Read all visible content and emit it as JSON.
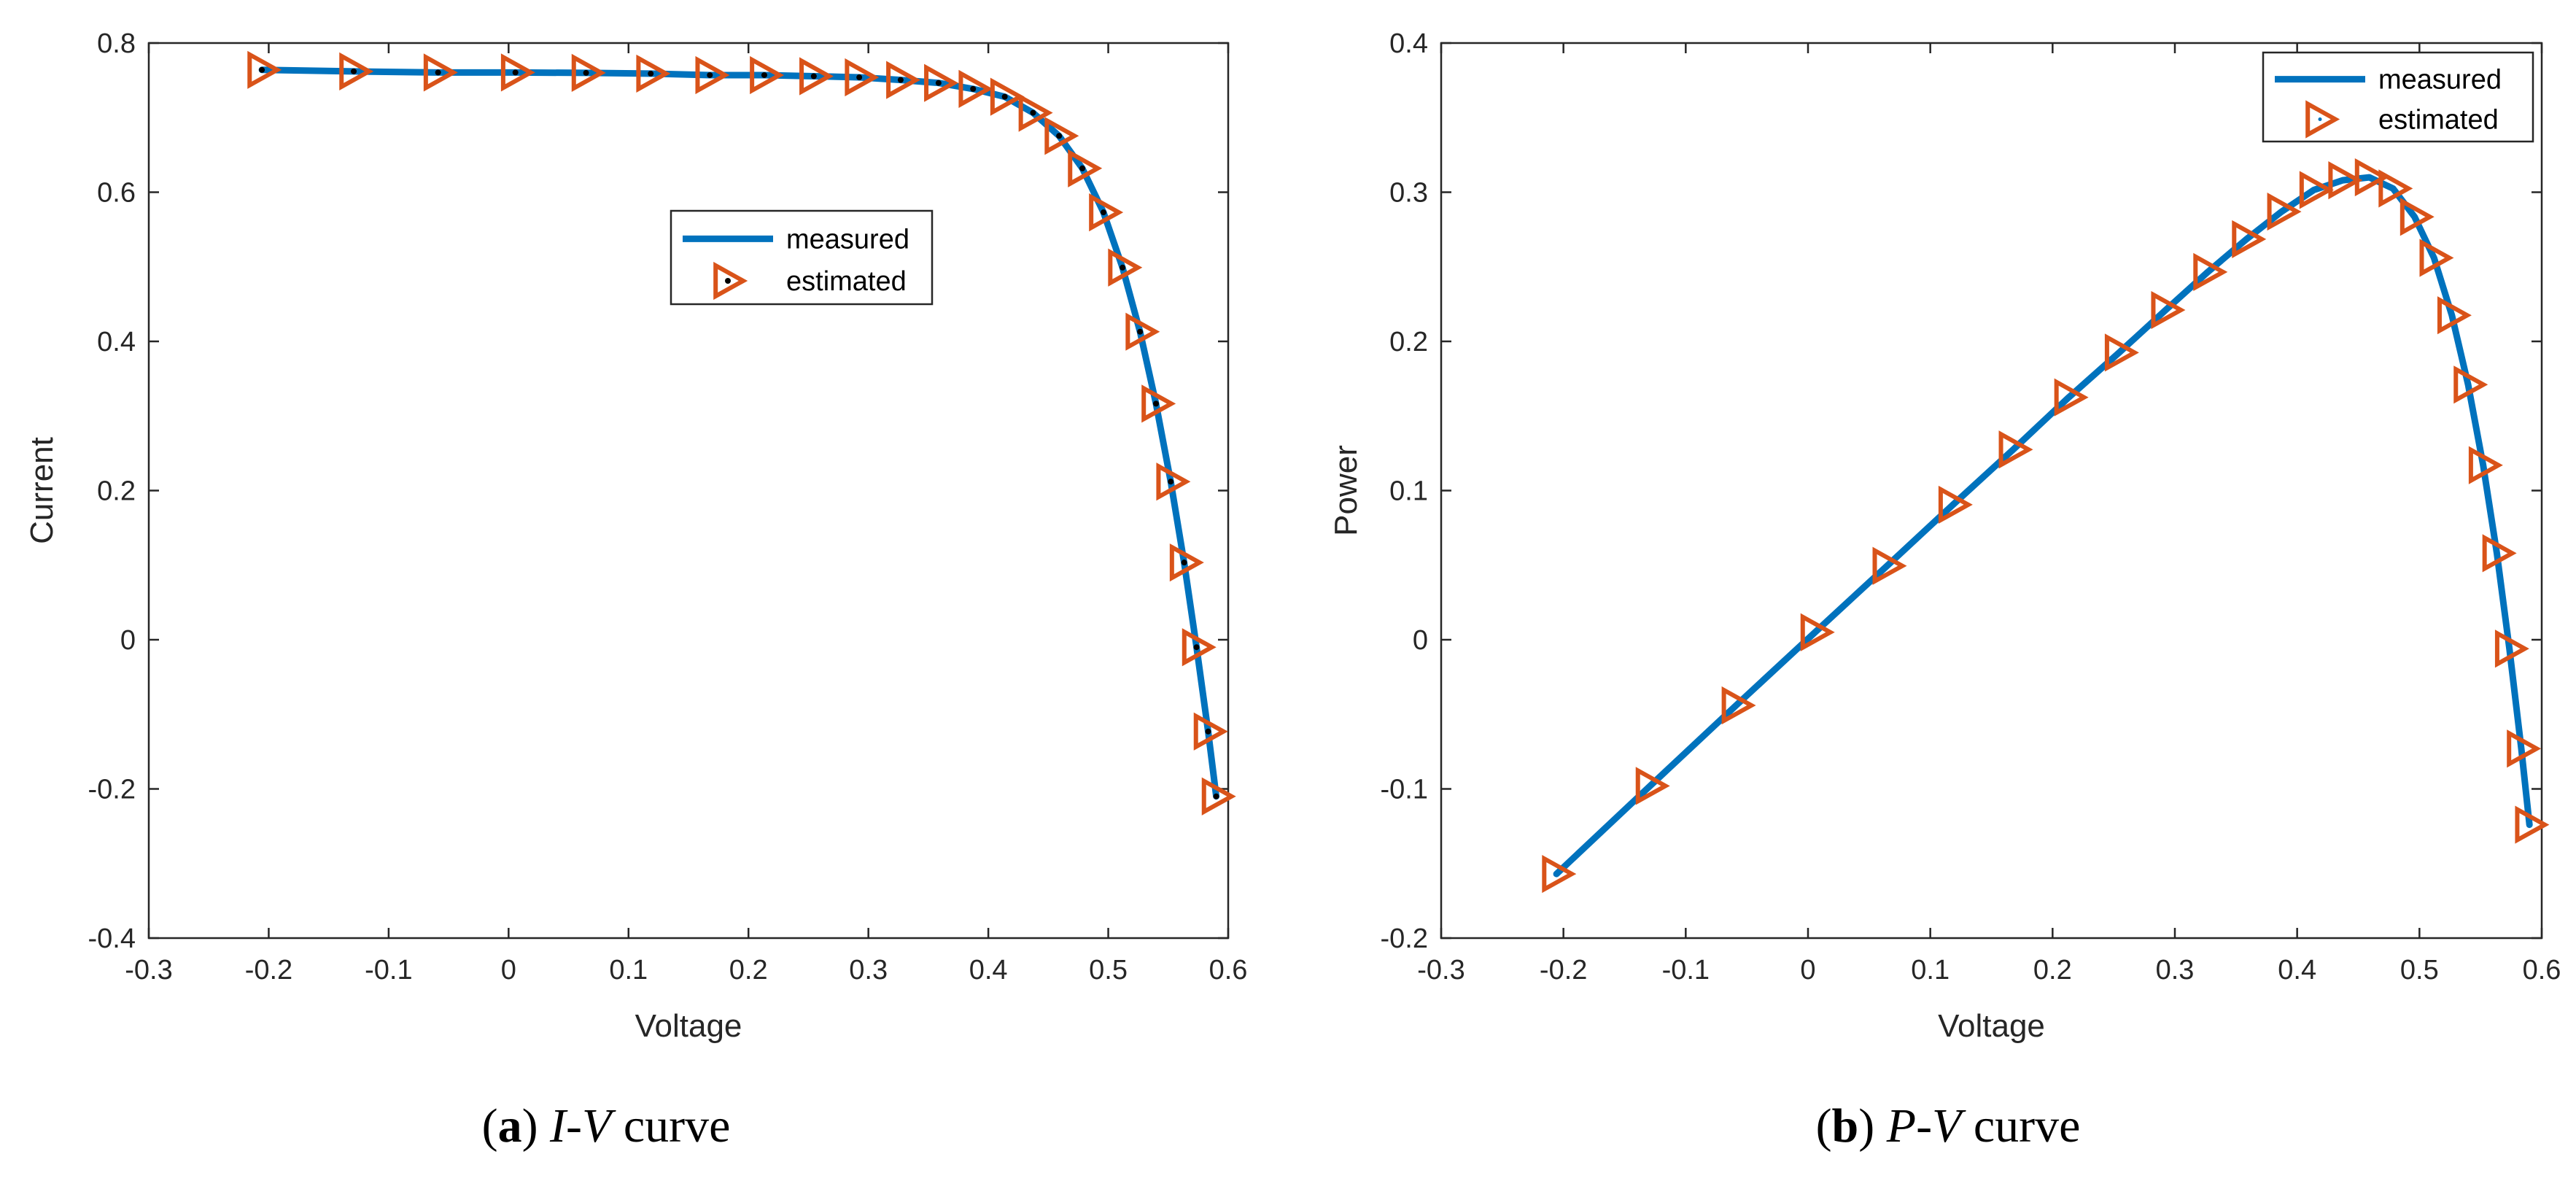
{
  "figure_captions": {
    "a": {
      "letter": "a",
      "var": "I-V",
      "rest": " curve"
    },
    "b": {
      "letter": "b",
      "var": "P-V",
      "rest": " curve"
    }
  },
  "colors": {
    "measured": "#0072BD",
    "estimated_edge": "#D95319",
    "estimated_face_a": "#000000",
    "estimated_face_b": "#FFFFFF"
  },
  "chart_data": [
    {
      "id": "a",
      "type": "line",
      "title": "",
      "xlabel": "Voltage",
      "ylabel": "Current",
      "xlim": [
        -0.3,
        0.6
      ],
      "ylim": [
        -0.4,
        0.8
      ],
      "xticks": [
        -0.3,
        -0.2,
        -0.1,
        0,
        0.1,
        0.2,
        0.3,
        0.4,
        0.5,
        0.6
      ],
      "xtick_labels": [
        "-0.3",
        "-0.2",
        "-0.1",
        "0",
        "0.1",
        "0.2",
        "0.3",
        "0.4",
        "0.5",
        "0.6"
      ],
      "yticks": [
        -0.4,
        -0.2,
        0,
        0.2,
        0.4,
        0.6,
        0.8
      ],
      "ytick_labels": [
        "-0.4",
        "-0.2",
        "0",
        "0.2",
        "0.4",
        "0.6",
        "0.8"
      ],
      "legend": {
        "position": "upper-center",
        "entries": [
          "measured",
          "estimated"
        ]
      },
      "series": [
        {
          "name": "measured",
          "style": "line",
          "x": [
            -0.2057,
            -0.1291,
            -0.0588,
            0.0057,
            0.0646,
            0.1185,
            0.1678,
            0.2132,
            0.2545,
            0.2924,
            0.3269,
            0.3585,
            0.3873,
            0.4137,
            0.4373,
            0.459,
            0.4784,
            0.496,
            0.5119,
            0.5265,
            0.5398,
            0.5521,
            0.5633,
            0.5736,
            0.5833,
            0.59
          ],
          "y": [
            0.764,
            0.762,
            0.7605,
            0.7605,
            0.76,
            0.759,
            0.757,
            0.757,
            0.7555,
            0.754,
            0.7505,
            0.7465,
            0.7385,
            0.728,
            0.7065,
            0.6755,
            0.632,
            0.573,
            0.499,
            0.413,
            0.3165,
            0.212,
            0.1035,
            -0.01,
            -0.123,
            -0.21
          ]
        },
        {
          "name": "estimated",
          "style": "triangle-right",
          "x": [
            -0.2057,
            -0.1291,
            -0.0588,
            0.0057,
            0.0646,
            0.1185,
            0.1678,
            0.2132,
            0.2545,
            0.2924,
            0.3269,
            0.3585,
            0.3873,
            0.4137,
            0.4373,
            0.459,
            0.4784,
            0.496,
            0.5119,
            0.5265,
            0.5398,
            0.5521,
            0.5633,
            0.5736,
            0.5833,
            0.59
          ],
          "y": [
            0.764,
            0.762,
            0.7605,
            0.7605,
            0.76,
            0.759,
            0.757,
            0.757,
            0.7555,
            0.754,
            0.7505,
            0.7465,
            0.7385,
            0.728,
            0.7065,
            0.6755,
            0.632,
            0.573,
            0.499,
            0.413,
            0.3165,
            0.212,
            0.1035,
            -0.01,
            -0.123,
            -0.21
          ]
        }
      ]
    },
    {
      "id": "b",
      "type": "line",
      "title": "",
      "xlabel": "Voltage",
      "ylabel": "Power",
      "xlim": [
        -0.3,
        0.6
      ],
      "ylim": [
        -0.2,
        0.4
      ],
      "xticks": [
        -0.3,
        -0.2,
        -0.1,
        0,
        0.1,
        0.2,
        0.3,
        0.4,
        0.5,
        0.6
      ],
      "xtick_labels": [
        "-0.3",
        "-0.2",
        "-0.1",
        "0",
        "0.1",
        "0.2",
        "0.3",
        "0.4",
        "0.5",
        "0.6"
      ],
      "yticks": [
        -0.2,
        -0.1,
        0,
        0.1,
        0.2,
        0.3,
        0.4
      ],
      "ytick_labels": [
        "-0.2",
        "-0.1",
        "0",
        "0.1",
        "0.2",
        "0.3",
        "0.4"
      ],
      "legend": {
        "position": "top-right",
        "entries": [
          "measured",
          "estimated"
        ]
      },
      "series": [
        {
          "name": "measured",
          "style": "line",
          "x": [
            -0.2057,
            -0.1291,
            -0.0588,
            0.0057,
            0.0646,
            0.1185,
            0.1678,
            0.2132,
            0.2545,
            0.2924,
            0.3269,
            0.3585,
            0.3873,
            0.4137,
            0.4373,
            0.459,
            0.4784,
            0.496,
            0.5119,
            0.5265,
            0.5398,
            0.5521,
            0.5633,
            0.5736,
            0.5833,
            0.59
          ],
          "y": [
            -0.157,
            -0.098,
            -0.044,
            0.005,
            0.0495,
            0.0905,
            0.1275,
            0.1625,
            0.1925,
            0.221,
            0.2465,
            0.2685,
            0.287,
            0.3015,
            0.308,
            0.31,
            0.3025,
            0.2835,
            0.256,
            0.2175,
            0.171,
            0.117,
            0.058,
            -0.006,
            -0.073,
            -0.124
          ]
        },
        {
          "name": "estimated",
          "style": "triangle-right-open",
          "x": [
            -0.2057,
            -0.1291,
            -0.0588,
            0.0057,
            0.0646,
            0.1185,
            0.1678,
            0.2132,
            0.2545,
            0.2924,
            0.3269,
            0.3585,
            0.3873,
            0.4137,
            0.4373,
            0.459,
            0.4784,
            0.496,
            0.5119,
            0.5265,
            0.5398,
            0.5521,
            0.5633,
            0.5736,
            0.5833,
            0.59
          ],
          "y": [
            -0.157,
            -0.098,
            -0.044,
            0.005,
            0.0495,
            0.0905,
            0.1275,
            0.1625,
            0.1925,
            0.221,
            0.2465,
            0.2685,
            0.287,
            0.3015,
            0.308,
            0.31,
            0.3025,
            0.2835,
            0.256,
            0.2175,
            0.171,
            0.117,
            0.058,
            -0.006,
            -0.073,
            -0.124
          ]
        }
      ]
    }
  ]
}
